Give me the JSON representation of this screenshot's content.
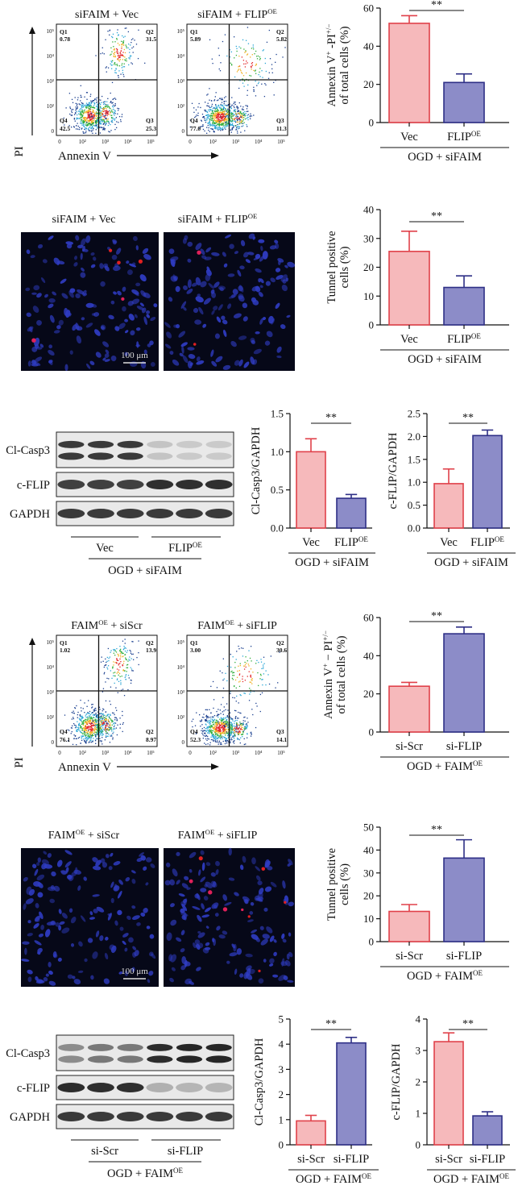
{
  "colors": {
    "vec_fill": "#f6b9bb",
    "vec_edge": "#e0414a",
    "oe_fill": "#8c8cc8",
    "oe_edge": "#2e2f86",
    "micro_bg": "#060818",
    "nucleus": "#2f3cc2",
    "wb_bg": "#e9e9e9",
    "wb_band": "#1b1b1b"
  },
  "panels": {
    "flow1": {
      "titles": [
        "siFAIM + Vec",
        "siFAIM + FLIP<sup>OE</sup>"
      ],
      "quads": [
        {
          "q1": "0.78",
          "q2": "31.5",
          "q3": "25.3",
          "q4": "42.5"
        },
        {
          "q1": "5.89",
          "q2": "5.82",
          "q3": "11.3",
          "q4": "77.0"
        }
      ],
      "q_labels": {
        "q1": "Q1",
        "q2": "Q2",
        "q3": "Q3",
        "q4": "Q4"
      },
      "ylabel": "PI",
      "xlabel": "Annexin V",
      "xticks": [
        "0",
        "10²",
        "10³",
        "10⁴",
        "10⁵"
      ],
      "yticks": [
        "10⁵",
        "10⁴",
        "10³",
        "10²",
        "0"
      ]
    },
    "micro1": {
      "titles": [
        "siFAIM + Vec",
        "siFAIM + FLIP<sup>OE</sup>"
      ],
      "scale": "100 μm"
    },
    "wb1": {
      "rows": [
        "Cl-Casp3",
        "c-FLIP",
        "GAPDH"
      ],
      "groups": [
        "Vec",
        "FLIP<sup>OE</sup>"
      ],
      "condition": "OGD + siFAIM"
    },
    "flow2": {
      "titles": [
        "FAIM<sup>OE</sup> + siScr",
        "FAIM<sup>OE</sup> + siFLIP"
      ],
      "quads": [
        {
          "q1": "1.02",
          "q2": "13.9",
          "q3": "8.97",
          "q4": "76.1"
        },
        {
          "q1": "3.00",
          "q2": "30.6",
          "q3": "14.1",
          "q4": "52.3"
        }
      ],
      "q_labels": {
        "q1": "Q1",
        "q2": "Q2",
        "q3": "Q2",
        "q4": "Q4",
        "q3_right": "Q3"
      },
      "ylabel": "PI",
      "xlabel": "Annexin V",
      "xticks": [
        "0",
        "10²",
        "10³",
        "10⁴",
        "10⁵"
      ],
      "yticks": [
        "10⁵",
        "10⁴",
        "10³",
        "10²",
        "0"
      ]
    },
    "micro2": {
      "titles": [
        "FAIM<sup>OE</sup> + siScr",
        "FAIM<sup>OE</sup> + siFLIP"
      ],
      "scale": "100 μm"
    },
    "wb2": {
      "rows": [
        "Cl-Casp3",
        "c-FLIP",
        "GAPDH"
      ],
      "groups": [
        "si-Scr",
        "si-FLIP"
      ],
      "condition": "OGD + FAIM<sup>OE</sup>"
    }
  },
  "chart_data": [
    {
      "id": "annexin1",
      "type": "bar",
      "categories": [
        "Vec",
        "FLIP<sup>OE</sup>"
      ],
      "values": [
        52,
        21
      ],
      "errors": [
        4,
        4.5
      ],
      "ylabel": [
        "Annexin V<sup>+</sup> -PI<sup>+/−</sup>",
        "of total cells (%)"
      ],
      "ylim": [
        0,
        60
      ],
      "yticks": [
        "0",
        "20",
        "40",
        "60"
      ],
      "significance": "**",
      "group_label": "OGD + siFAIM"
    },
    {
      "id": "tunel1",
      "type": "bar",
      "categories": [
        "Vec",
        "FLIP<sup>OE</sup>"
      ],
      "values": [
        25.5,
        13
      ],
      "errors": [
        7,
        4
      ],
      "ylabel": [
        "Tunnel positive",
        "cells (%)"
      ],
      "ylim": [
        0,
        40
      ],
      "yticks": [
        "0",
        "10",
        "20",
        "30",
        "40"
      ],
      "significance": "**",
      "group_label": "OGD + siFAIM"
    },
    {
      "id": "casp3_1",
      "type": "bar",
      "categories": [
        "Vec",
        "FLIP<sup>OE</sup>"
      ],
      "values": [
        1.0,
        0.39
      ],
      "errors": [
        0.17,
        0.05
      ],
      "ylabel": [
        "Cl-Casp3/GAPDH"
      ],
      "ylim": [
        0,
        1.5
      ],
      "yticks": [
        "0.0",
        "0.5",
        "1.0",
        "1.5"
      ],
      "significance": "**",
      "group_label": "OGD + siFAIM"
    },
    {
      "id": "flip1",
      "type": "bar",
      "categories": [
        "Vec",
        "FLIP<sup>OE</sup>"
      ],
      "values": [
        0.97,
        2.02
      ],
      "errors": [
        0.32,
        0.12
      ],
      "ylabel": [
        "c-FLIP/GAPDH"
      ],
      "ylim": [
        0,
        2.5
      ],
      "yticks": [
        "0.0",
        "0.5",
        "1.0",
        "1.5",
        "2.0",
        "2.5"
      ],
      "significance": "**",
      "group_label": "OGD + siFAIM"
    },
    {
      "id": "annexin2",
      "type": "bar",
      "categories": [
        "si-Scr",
        "si-FLIP"
      ],
      "values": [
        24,
        51.5
      ],
      "errors": [
        2,
        3.5
      ],
      "ylabel": [
        "Annexin V<sup>+</sup> − PI<sup>+/−</sup>",
        "of total cells (%)"
      ],
      "ylim": [
        0,
        60
      ],
      "yticks": [
        "0",
        "20",
        "40",
        "60"
      ],
      "significance": "**",
      "group_label": "OGD + FAIM<sup>OE</sup>"
    },
    {
      "id": "tunel2",
      "type": "bar",
      "categories": [
        "si-Scr",
        "si-FLIP"
      ],
      "values": [
        13.2,
        36.5
      ],
      "errors": [
        3,
        8
      ],
      "ylabel": [
        "Tunnel positive",
        "cells (%)"
      ],
      "ylim": [
        0,
        50
      ],
      "yticks": [
        "0",
        "10",
        "20",
        "30",
        "40",
        "50"
      ],
      "significance": "**",
      "group_label": "OGD + FAIM<sup>OE</sup>"
    },
    {
      "id": "casp3_2",
      "type": "bar",
      "categories": [
        "si-Scr",
        "si-FLIP"
      ],
      "values": [
        0.95,
        4.05
      ],
      "errors": [
        0.22,
        0.22
      ],
      "ylabel": [
        "Cl-Casp3/GAPDH"
      ],
      "ylim": [
        0,
        5
      ],
      "yticks": [
        "0",
        "1",
        "2",
        "3",
        "4",
        "5"
      ],
      "significance": "**",
      "group_label": "OGD + FAIM<sup>OE</sup>"
    },
    {
      "id": "flip2",
      "type": "bar",
      "categories": [
        "si-Scr",
        "si-FLIP"
      ],
      "values": [
        3.28,
        0.92
      ],
      "errors": [
        0.28,
        0.13
      ],
      "ylabel": [
        "c-FLIP/GAPDH"
      ],
      "ylim": [
        0,
        4
      ],
      "yticks": [
        "0",
        "1",
        "2",
        "3",
        "4"
      ],
      "significance": "**",
      "group_label": "OGD + FAIM<sup>OE</sup>"
    }
  ]
}
